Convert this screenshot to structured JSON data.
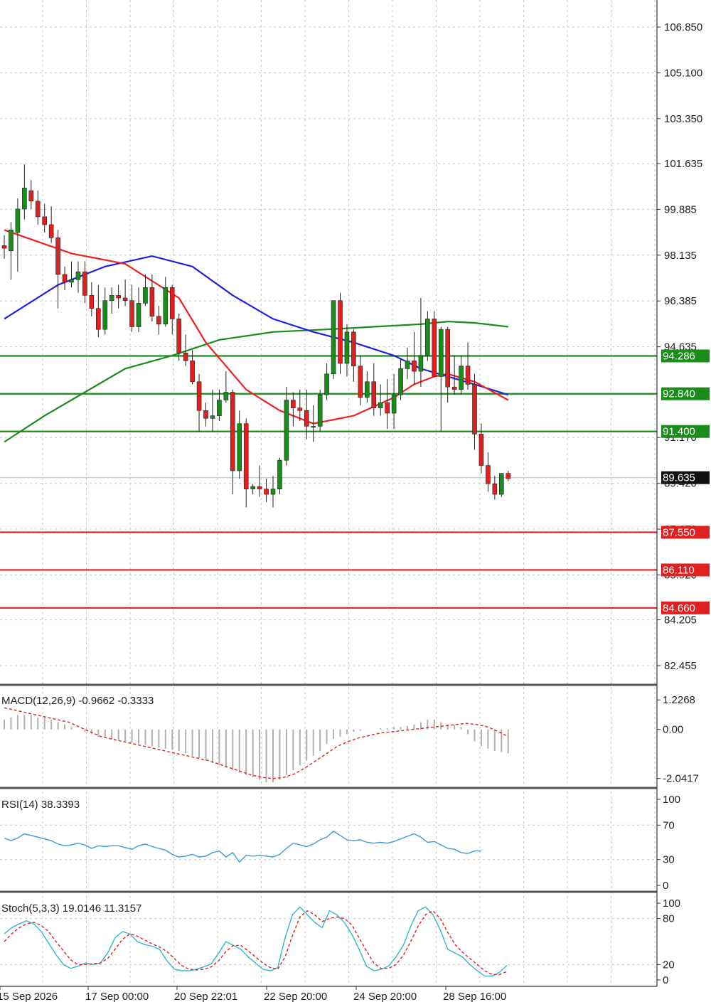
{
  "chart_data": {
    "type": "candlestick",
    "main": {
      "price_ticks": [
        "106.850",
        "105.100",
        "103.350",
        "101.635",
        "99.885",
        "98.135",
        "96.385",
        "94.635",
        "91.170",
        "89.420",
        "87.670",
        "85.920",
        "84.205",
        "82.455"
      ],
      "price_range": [
        81.5,
        107.6
      ],
      "current_price": "89.635",
      "support_resistance": [
        {
          "value": 94.286,
          "label": "94.286",
          "color": "#1a8c1a"
        },
        {
          "value": 92.84,
          "label": "92.840",
          "color": "#1a8c1a"
        },
        {
          "value": 91.4,
          "label": "91.400",
          "color": "#1a8c1a"
        },
        {
          "value": 87.55,
          "label": "87.550",
          "color": "#e02020"
        },
        {
          "value": 86.11,
          "label": "86.110",
          "color": "#e02020"
        },
        {
          "value": 84.66,
          "label": "84.660",
          "color": "#e02020"
        }
      ],
      "candles": [
        [
          98.5,
          98.9,
          98.0,
          98.4
        ],
        [
          98.3,
          99.4,
          97.2,
          99.1
        ],
        [
          99.0,
          100.3,
          97.5,
          99.9
        ],
        [
          99.9,
          101.6,
          99.5,
          100.7
        ],
        [
          100.6,
          101.0,
          99.9,
          100.2
        ],
        [
          100.2,
          100.6,
          99.3,
          99.6
        ],
        [
          99.6,
          100.1,
          99.0,
          99.3
        ],
        [
          99.3,
          100.0,
          98.6,
          98.8
        ],
        [
          98.8,
          99.1,
          96.1,
          97.4
        ],
        [
          97.4,
          97.7,
          96.8,
          97.1
        ],
        [
          97.1,
          97.9,
          96.9,
          97.2
        ],
        [
          97.2,
          97.9,
          96.7,
          97.5
        ],
        [
          97.5,
          97.9,
          96.3,
          96.6
        ],
        [
          96.6,
          97.1,
          95.8,
          96.1
        ],
        [
          96.1,
          97.0,
          95.0,
          95.3
        ],
        [
          95.3,
          96.9,
          95.1,
          96.4
        ],
        [
          96.4,
          96.9,
          95.9,
          96.6
        ],
        [
          96.6,
          97.0,
          96.1,
          96.5
        ],
        [
          96.5,
          97.2,
          96.2,
          96.4
        ],
        [
          96.4,
          97.0,
          95.2,
          95.4
        ],
        [
          95.4,
          96.9,
          95.2,
          96.3
        ],
        [
          96.3,
          97.4,
          96.2,
          96.9
        ],
        [
          96.9,
          97.4,
          95.6,
          95.8
        ],
        [
          95.8,
          96.2,
          95.1,
          95.5
        ],
        [
          95.5,
          97.3,
          95.4,
          96.9
        ],
        [
          96.9,
          97.0,
          95.1,
          95.7
        ],
        [
          95.7,
          95.9,
          94.1,
          94.4
        ],
        [
          94.4,
          95.1,
          93.9,
          94.1
        ],
        [
          94.1,
          94.5,
          93.2,
          93.3
        ],
        [
          93.3,
          93.6,
          91.4,
          92.2
        ],
        [
          92.2,
          92.5,
          91.6,
          91.9
        ],
        [
          91.9,
          93.0,
          91.4,
          92.0
        ],
        [
          92.0,
          93.0,
          91.8,
          92.6
        ],
        [
          92.6,
          93.7,
          92.5,
          92.9
        ],
        [
          92.9,
          93.0,
          89.0,
          89.9
        ],
        [
          89.9,
          92.2,
          89.6,
          91.7
        ],
        [
          91.7,
          91.9,
          88.5,
          89.2
        ],
        [
          89.2,
          89.4,
          89.0,
          89.3
        ],
        [
          89.3,
          90.1,
          88.9,
          89.2
        ],
        [
          89.2,
          89.6,
          88.7,
          89.0
        ],
        [
          89.0,
          89.7,
          88.5,
          89.2
        ],
        [
          89.2,
          90.4,
          89.0,
          90.3
        ],
        [
          90.3,
          93.1,
          90.1,
          92.6
        ],
        [
          92.6,
          92.9,
          91.6,
          92.3
        ],
        [
          92.3,
          93.0,
          91.8,
          92.2
        ],
        [
          92.2,
          93.0,
          91.1,
          91.6
        ],
        [
          91.6,
          92.4,
          91.0,
          91.6
        ],
        [
          91.6,
          93.0,
          91.4,
          92.8
        ],
        [
          92.8,
          94.0,
          92.6,
          93.6
        ],
        [
          93.6,
          96.4,
          93.4,
          96.4
        ],
        [
          96.4,
          96.7,
          93.6,
          94.0
        ],
        [
          94.0,
          95.5,
          93.5,
          95.2
        ],
        [
          95.2,
          95.3,
          93.3,
          93.9
        ],
        [
          93.9,
          94.3,
          92.4,
          92.7
        ],
        [
          92.7,
          93.7,
          92.5,
          93.3
        ],
        [
          93.3,
          94.0,
          92.0,
          92.3
        ],
        [
          92.3,
          93.2,
          92.0,
          92.5
        ],
        [
          92.5,
          93.4,
          91.5,
          92.1
        ],
        [
          92.1,
          93.6,
          91.5,
          92.8
        ],
        [
          92.8,
          94.2,
          92.6,
          93.8
        ],
        [
          93.8,
          94.6,
          93.4,
          94.1
        ],
        [
          94.1,
          95.2,
          93.2,
          93.7
        ],
        [
          93.7,
          96.5,
          93.1,
          94.3
        ],
        [
          94.3,
          96.0,
          94.1,
          95.7
        ],
        [
          95.7,
          96.0,
          93.5,
          93.5
        ],
        [
          93.5,
          95.4,
          91.4,
          95.3
        ],
        [
          95.3,
          95.4,
          92.5,
          93.1
        ],
        [
          93.1,
          94.3,
          92.8,
          93.0
        ],
        [
          93.0,
          94.3,
          92.8,
          93.9
        ],
        [
          93.9,
          94.8,
          93.0,
          93.2
        ],
        [
          93.2,
          93.6,
          90.7,
          91.3
        ],
        [
          91.3,
          91.7,
          89.8,
          90.1
        ],
        [
          90.1,
          90.6,
          89.1,
          89.4
        ],
        [
          89.4,
          89.7,
          88.8,
          89.0
        ],
        [
          89.0,
          89.8,
          88.9,
          89.8
        ],
        [
          89.8,
          89.9,
          89.5,
          89.6
        ]
      ],
      "ma_red": [
        [
          0,
          99.1
        ],
        [
          10,
          98.2
        ],
        [
          18,
          97.8
        ],
        [
          26,
          96.5
        ],
        [
          30,
          94.8
        ],
        [
          36,
          93.0
        ],
        [
          41,
          92.2
        ],
        [
          46,
          91.7
        ],
        [
          52,
          92.0
        ],
        [
          58,
          92.7
        ],
        [
          61,
          93.2
        ],
        [
          64,
          93.5
        ],
        [
          66,
          93.6
        ],
        [
          70,
          93.3
        ],
        [
          75,
          92.6
        ]
      ],
      "ma_blue": [
        [
          0,
          95.7
        ],
        [
          8,
          97.0
        ],
        [
          15,
          97.7
        ],
        [
          22,
          98.1
        ],
        [
          28,
          97.7
        ],
        [
          34,
          96.6
        ],
        [
          40,
          95.7
        ],
        [
          46,
          95.2
        ],
        [
          52,
          94.8
        ],
        [
          58,
          94.3
        ],
        [
          62,
          93.8
        ],
        [
          66,
          93.5
        ],
        [
          70,
          93.2
        ],
        [
          75,
          92.8
        ]
      ],
      "ma_green": [
        [
          0,
          91.0
        ],
        [
          6,
          92.0
        ],
        [
          12,
          92.9
        ],
        [
          18,
          93.8
        ],
        [
          25,
          94.3
        ],
        [
          32,
          94.9
        ],
        [
          40,
          95.2
        ],
        [
          48,
          95.3
        ],
        [
          55,
          95.4
        ],
        [
          62,
          95.5
        ],
        [
          66,
          95.6
        ],
        [
          70,
          95.55
        ],
        [
          75,
          95.4
        ]
      ]
    },
    "x_labels": [
      "15 Sep 2026",
      "17 Sep 00:00",
      "20 Sep 22:01",
      "22 Sep 20:00",
      "24 Sep 20:00",
      "28 Sep 16:00"
    ],
    "macd": {
      "label": "MACD(12,26,9) -0.9662 -0.3333",
      "ticks": [
        "1.2268",
        "0.00",
        "-2.0417"
      ],
      "range": [
        -2.2,
        1.5
      ],
      "histogram": [
        0.4,
        0.5,
        0.6,
        0.6,
        0.6,
        0.5,
        0.5,
        0.4,
        0.3,
        0.2,
        0.1,
        0.0,
        -0.1,
        -0.2,
        -0.3,
        -0.35,
        -0.4,
        -0.45,
        -0.5,
        -0.55,
        -0.6,
        -0.65,
        -0.7,
        -0.75,
        -0.8,
        -0.85,
        -0.9,
        -1.0,
        -1.1,
        -1.2,
        -1.3,
        -1.4,
        -1.5,
        -1.6,
        -1.7,
        -1.8,
        -1.9,
        -2.0,
        -2.1,
        -2.2,
        -2.2,
        -2.1,
        -1.9,
        -1.7,
        -1.5,
        -1.3,
        -1.1,
        -0.9,
        -0.6,
        -0.4,
        -0.3,
        -0.2,
        -0.1,
        -0.05,
        0.0,
        0.0,
        0.05,
        0.05,
        0.1,
        0.1,
        0.15,
        0.2,
        0.3,
        0.4,
        0.4,
        0.3,
        0.2,
        0.2,
        0.1,
        -0.2,
        -0.5,
        -0.7,
        -0.8,
        -0.9,
        -0.95,
        -1.0
      ],
      "signal": [
        0.9,
        0.8,
        0.7,
        0.6,
        0.5,
        0.4,
        0.3,
        0.1,
        -0.1,
        -0.3,
        -0.4,
        -0.5,
        -0.6,
        -0.7,
        -0.8,
        -0.9,
        -1.0,
        -1.1,
        -1.2,
        -1.3,
        -1.45,
        -1.6,
        -1.75,
        -1.9,
        -2.0,
        -2.05,
        -2.0,
        -1.85,
        -1.6,
        -1.3,
        -1.0,
        -0.7,
        -0.5,
        -0.35,
        -0.25,
        -0.15,
        -0.1,
        -0.05,
        0.0,
        0.05,
        0.1,
        0.15,
        0.2,
        0.25,
        0.2,
        0.1,
        -0.1,
        -0.3
      ],
      "signal_x": [
        0,
        1.6,
        3.2,
        4.8,
        6.4,
        8,
        9.6,
        11.2,
        12.8,
        14.4,
        16,
        17.6,
        19.2,
        20.8,
        22.4,
        24,
        25.6,
        27.2,
        28.8,
        30.4,
        32,
        33.6,
        35.2,
        36.8,
        38.4,
        40,
        41.6,
        43.2,
        44.8,
        46.4,
        48,
        49.6,
        51.2,
        52.8,
        54.4,
        56,
        57.6,
        59.2,
        60.8,
        62.4,
        64,
        65.6,
        67.2,
        68.8,
        70.4,
        72,
        73.6,
        75
      ]
    },
    "rsi": {
      "label": "RSI(14) 38.3393",
      "ticks": [
        "100",
        "70",
        "30",
        "0"
      ],
      "tick_values": [
        100,
        70,
        30,
        0
      ],
      "values": [
        55,
        52,
        55,
        60,
        58,
        56,
        54,
        52,
        48,
        46,
        47,
        49,
        47,
        43,
        46,
        45,
        46,
        46,
        44,
        42,
        46,
        48,
        45,
        43,
        41,
        36,
        33,
        34,
        36,
        33,
        34,
        38,
        40,
        33,
        38,
        27,
        35,
        34,
        35,
        34,
        33,
        36,
        43,
        49,
        47,
        45,
        48,
        53,
        56,
        63,
        58,
        53,
        52,
        53,
        50,
        49,
        50,
        49,
        51,
        54,
        57,
        60,
        56,
        50,
        51,
        47,
        43,
        42,
        38,
        37,
        40,
        40
      ],
      "range": [
        0,
        100
      ]
    },
    "stoch": {
      "label": "Stoch(5,3,3) 19.0146 11.3157",
      "ticks": [
        "100",
        "80",
        "20",
        "0"
      ],
      "tick_values": [
        100,
        80,
        20,
        0
      ],
      "k": [
        60,
        68,
        73,
        77,
        73,
        63,
        48,
        33,
        20,
        15,
        18,
        22,
        20,
        22,
        35,
        55,
        63,
        60,
        50,
        46,
        44,
        40,
        25,
        14,
        12,
        12,
        14,
        17,
        21,
        35,
        50,
        45,
        40,
        30,
        22,
        14,
        12,
        16,
        55,
        85,
        95,
        85,
        75,
        68,
        90,
        85,
        75,
        60,
        40,
        18,
        12,
        14,
        18,
        30,
        45,
        70,
        90,
        95,
        85,
        65,
        40,
        35,
        30,
        20,
        12,
        5,
        5,
        10,
        19
      ],
      "d": [
        50,
        60,
        68,
        73,
        75,
        71,
        63,
        50,
        38,
        26,
        20,
        20,
        21,
        22,
        28,
        40,
        53,
        60,
        57,
        52,
        47,
        43,
        37,
        28,
        19,
        14,
        13,
        14,
        17,
        25,
        37,
        45,
        45,
        38,
        30,
        22,
        16,
        14,
        30,
        58,
        82,
        90,
        85,
        76,
        80,
        82,
        80,
        72,
        55,
        38,
        22,
        15,
        15,
        20,
        32,
        50,
        70,
        85,
        90,
        80,
        62,
        46,
        36,
        28,
        20,
        12,
        7,
        7,
        11
      ],
      "range": [
        0,
        100
      ]
    }
  }
}
